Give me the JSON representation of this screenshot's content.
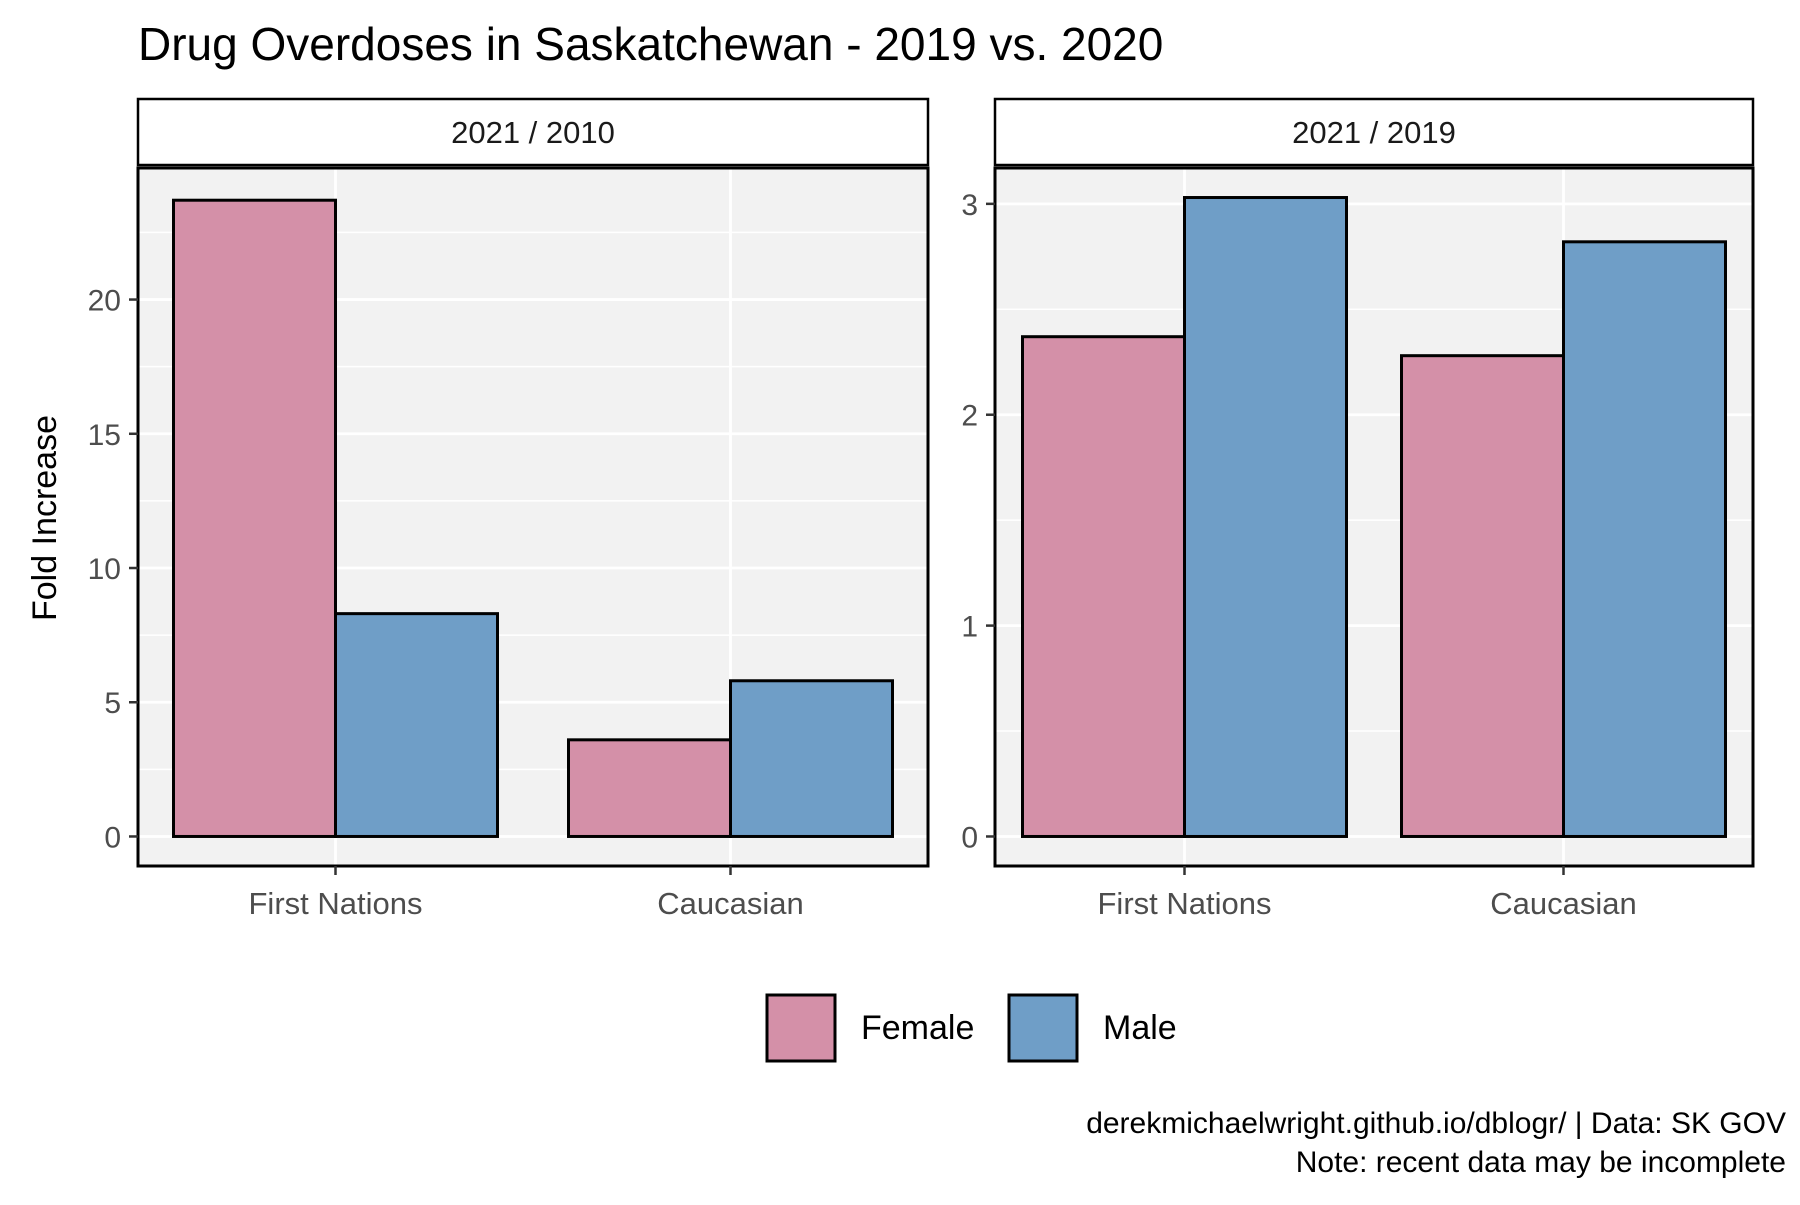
{
  "chart_data": {
    "type": "bar",
    "title": "Drug Overdoses in Saskatchewan - 2019 vs. 2020",
    "ylabel": "Fold Increase",
    "xlabel": "",
    "categories": [
      "First Nations",
      "Caucasian"
    ],
    "legend": {
      "position": "bottom",
      "entries": [
        {
          "name": "Female",
          "color": "#d490a8"
        },
        {
          "name": "Male",
          "color": "#6f9ec7"
        }
      ]
    },
    "panels": [
      {
        "label": "2021 / 2010",
        "ylim": [
          -1.1,
          24.9
        ],
        "yticks": [
          0,
          5,
          10,
          15,
          20
        ],
        "series": [
          {
            "name": "Female",
            "values": [
              23.7,
              3.6
            ]
          },
          {
            "name": "Male",
            "values": [
              8.3,
              5.8
            ]
          }
        ]
      },
      {
        "label": "2021 / 2019",
        "ylim": [
          -0.14,
          3.17
        ],
        "yticks": [
          0,
          1,
          2,
          3
        ],
        "series": [
          {
            "name": "Female",
            "values": [
              2.37,
              2.28
            ]
          },
          {
            "name": "Male",
            "values": [
              3.03,
              2.82
            ]
          }
        ]
      }
    ],
    "grid": true,
    "caption": [
      "derekmichaelwright.github.io/dblogr/ | Data: SK GOV",
      "Note: recent data may be incomplete"
    ]
  }
}
